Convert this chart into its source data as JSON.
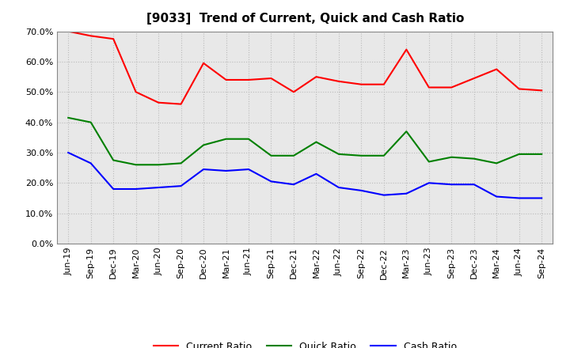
{
  "title": "[9033]  Trend of Current, Quick and Cash Ratio",
  "labels": [
    "Jun-19",
    "Sep-19",
    "Dec-19",
    "Mar-20",
    "Jun-20",
    "Sep-20",
    "Dec-20",
    "Mar-21",
    "Jun-21",
    "Sep-21",
    "Dec-21",
    "Mar-22",
    "Jun-22",
    "Sep-22",
    "Dec-22",
    "Mar-23",
    "Jun-23",
    "Sep-23",
    "Dec-23",
    "Mar-24",
    "Jun-24",
    "Sep-24"
  ],
  "current_ratio": [
    70.0,
    68.5,
    67.5,
    50.0,
    46.5,
    46.0,
    59.5,
    54.0,
    54.0,
    54.5,
    50.0,
    55.0,
    53.5,
    52.5,
    52.5,
    64.0,
    51.5,
    51.5,
    54.5,
    57.5,
    51.0,
    50.5
  ],
  "quick_ratio": [
    41.5,
    40.0,
    27.5,
    26.0,
    26.0,
    26.5,
    32.5,
    34.5,
    34.5,
    29.0,
    29.0,
    33.5,
    29.5,
    29.0,
    29.0,
    37.0,
    27.0,
    28.5,
    28.0,
    26.5,
    29.5,
    29.5
  ],
  "cash_ratio": [
    30.0,
    26.5,
    18.0,
    18.0,
    18.5,
    19.0,
    24.5,
    24.0,
    24.5,
    20.5,
    19.5,
    23.0,
    18.5,
    17.5,
    16.0,
    16.5,
    20.0,
    19.5,
    19.5,
    15.5,
    15.0,
    15.0
  ],
  "current_color": "#ff0000",
  "quick_color": "#008000",
  "cash_color": "#0000ff",
  "ylim": [
    0.0,
    70.0
  ],
  "yticks": [
    0.0,
    10.0,
    20.0,
    30.0,
    40.0,
    50.0,
    60.0,
    70.0
  ],
  "background_color": "#ffffff",
  "plot_bg_color": "#e8e8e8",
  "grid_color": "#bbbbbb",
  "line_width": 1.5,
  "title_fontsize": 11,
  "tick_fontsize": 8,
  "legend_fontsize": 9
}
